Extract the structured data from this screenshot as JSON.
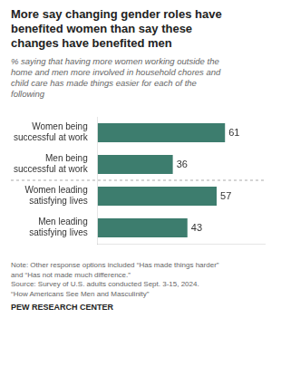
{
  "chart_data": {
    "type": "bar",
    "orientation": "horizontal",
    "title": "More say changing gender roles have\nbenefited women than say these\nchanges have benefited men",
    "subtitle": "% saying that having more women working outside the\nhome and men more involved in household chores and\nchild care has made things easier for each of the\nfollowing",
    "categories": [
      [
        "Women being",
        "successful at work"
      ],
      [
        "Men being",
        "successful at work"
      ],
      [
        "Women leading",
        "satisfying lives"
      ],
      [
        "Men leading",
        "satisfying lives"
      ]
    ],
    "values": [
      61,
      36,
      57,
      43
    ],
    "color": "#3d7d6e",
    "xlim": [
      0,
      80
    ],
    "xticks": [],
    "grid": false,
    "tick_labels": "y",
    "data_labels": true,
    "annotations": [
      "Note: Other response options included “Has made things harder”\nand “Has not made much difference.”\nSource: Survey of U.S. adults conducted Sept. 3-15, 2024.\n“How Americans See Men and Masculinity”",
      "PEW RESEARCH CENTER"
    ]
  }
}
